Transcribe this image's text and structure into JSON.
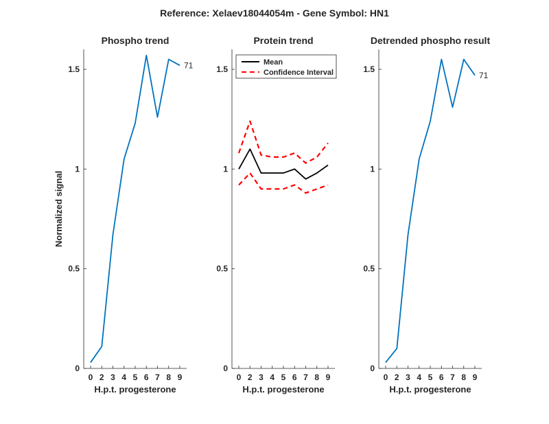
{
  "figure_title": "Reference:  Xelaev18044054m - Gene Symbol:  HN1",
  "chart_data": [
    {
      "type": "line",
      "title": "Phospho trend",
      "xlabel": "H.p.t. progesterone",
      "ylabel": "Normalized signal",
      "x_ticks": [
        "0",
        "2",
        "3",
        "4",
        "5",
        "6",
        "7",
        "8",
        "9"
      ],
      "ylim": [
        0,
        1.6
      ],
      "y_ticks": [
        "0",
        "0.5",
        "1",
        "1.5"
      ],
      "y_tick_values": [
        0,
        0.5,
        1,
        1.5
      ],
      "series": [
        {
          "values": [
            0.03,
            0.11,
            0.67,
            1.05,
            1.23,
            1.57,
            1.26,
            1.55,
            1.52
          ],
          "color": "#0072BD",
          "style": "solid"
        }
      ],
      "end_label": "71",
      "grid": false
    },
    {
      "type": "line",
      "title": "Protein trend",
      "xlabel": "H.p.t. progesterone",
      "ylabel": "",
      "x_ticks": [
        "0",
        "2",
        "3",
        "4",
        "5",
        "6",
        "7",
        "8",
        "9"
      ],
      "ylim": [
        0,
        1.6
      ],
      "y_ticks": [
        "0",
        "0.5",
        "1",
        "1.5"
      ],
      "y_tick_values": [
        0,
        0.5,
        1,
        1.5
      ],
      "series": [
        {
          "name": "Mean",
          "values": [
            1.0,
            1.1,
            0.98,
            0.98,
            0.98,
            1.0,
            0.95,
            0.98,
            1.02
          ],
          "color": "#000000",
          "style": "solid"
        },
        {
          "name": "Confidence Interval",
          "values": [
            1.08,
            1.24,
            1.07,
            1.06,
            1.06,
            1.08,
            1.03,
            1.06,
            1.13
          ],
          "color": "#FF0000",
          "style": "dashed"
        },
        {
          "values": [
            0.92,
            0.98,
            0.9,
            0.9,
            0.9,
            0.92,
            0.88,
            0.9,
            0.92
          ],
          "color": "#FF0000",
          "style": "dashed"
        }
      ],
      "legend": {
        "placement": "top-left",
        "entries": [
          "Mean",
          "Confidence Interval"
        ]
      },
      "grid": false
    },
    {
      "type": "line",
      "title": "Detrended phospho result",
      "xlabel": "H.p.t. progesterone",
      "ylabel": "",
      "x_ticks": [
        "0",
        "2",
        "3",
        "4",
        "5",
        "6",
        "7",
        "8",
        "9"
      ],
      "ylim": [
        0,
        1.6
      ],
      "y_ticks": [
        "0",
        "0.5",
        "1",
        "1.5"
      ],
      "y_tick_values": [
        0,
        0.5,
        1,
        1.5
      ],
      "series": [
        {
          "values": [
            0.03,
            0.1,
            0.67,
            1.05,
            1.24,
            1.55,
            1.31,
            1.55,
            1.47
          ],
          "color": "#0072BD",
          "style": "solid"
        }
      ],
      "end_label": "71",
      "grid": false
    }
  ]
}
